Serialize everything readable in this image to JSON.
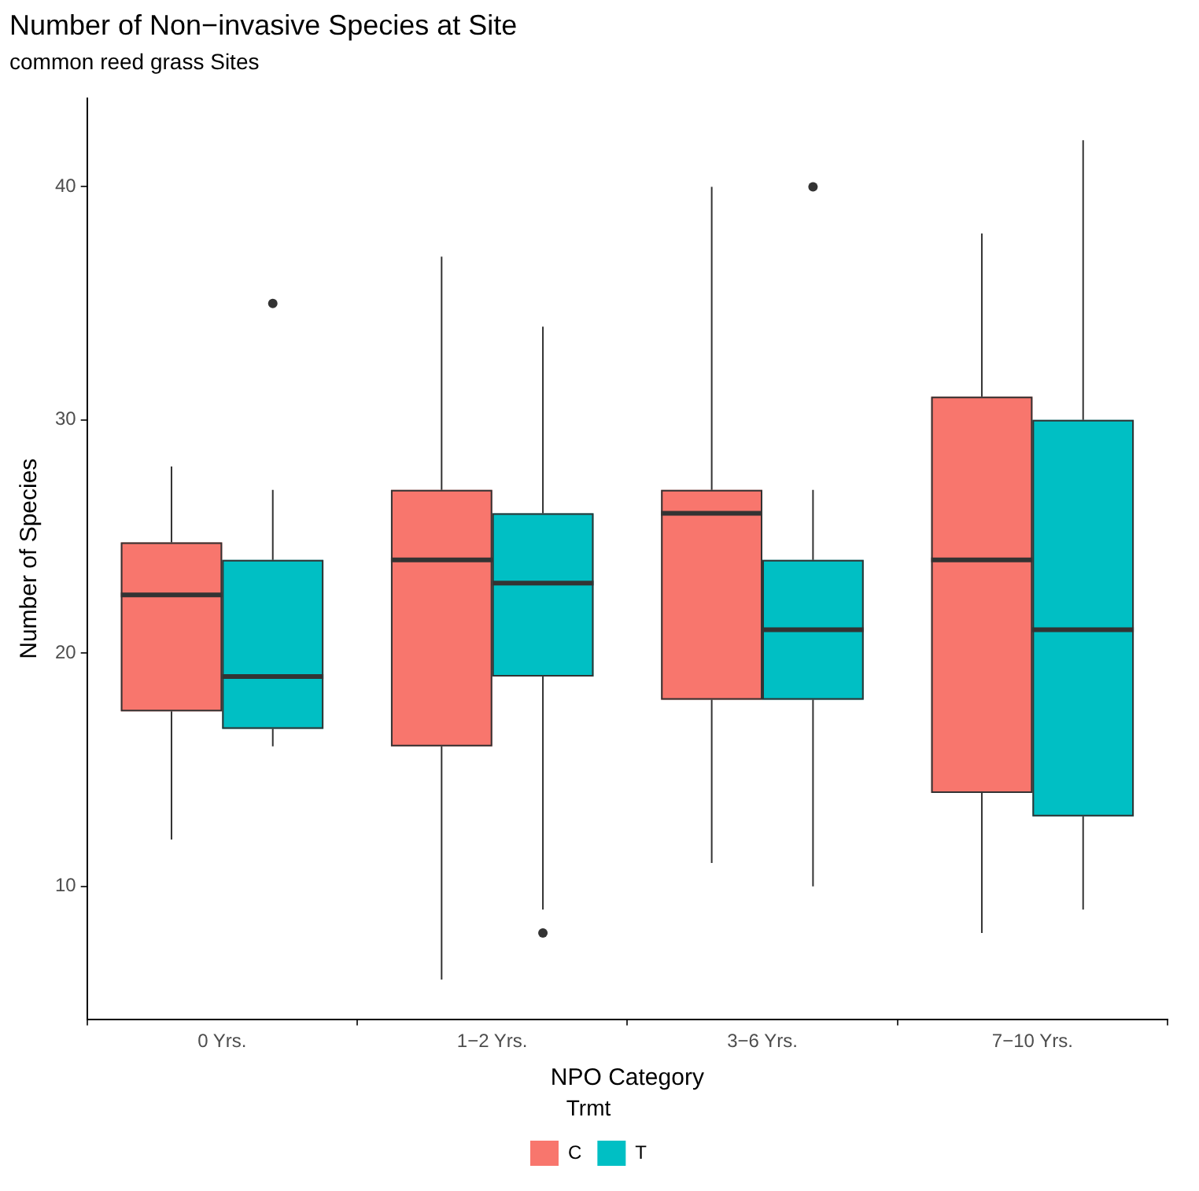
{
  "chart_data": {
    "type": "box",
    "title": "Number of Non−invasive Species at Site",
    "subtitle": "common reed grass Sites",
    "xlabel": "NPO Category",
    "ylabel": "Number of Species",
    "legend_title": "Trmt",
    "legend": "bottom",
    "categories": [
      "0 Yrs.",
      "1−2 Yrs.",
      "3−6 Yrs.",
      "7−10 Yrs."
    ],
    "ylim": [
      4.3,
      43.8
    ],
    "yticks": [
      10,
      20,
      30,
      40
    ],
    "series": [
      {
        "name": "C",
        "color": "#f8766d",
        "boxes": [
          {
            "low": 12,
            "q1": 17.5,
            "median": 22.5,
            "q3": 24.75,
            "high": 28
          },
          {
            "low": 6,
            "q1": 16,
            "median": 24,
            "q3": 27,
            "high": 37
          },
          {
            "low": 11,
            "q1": 18,
            "median": 26,
            "q3": 27,
            "high": 40
          },
          {
            "low": 8,
            "q1": 14,
            "median": 24,
            "q3": 31,
            "high": 38
          }
        ]
      },
      {
        "name": "T",
        "color": "#00bfc4",
        "boxes": [
          {
            "low": 16,
            "q1": 16.75,
            "median": 19,
            "q3": 24,
            "high": 27,
            "outliers": [
              35
            ]
          },
          {
            "low": 9,
            "q1": 19,
            "median": 23,
            "q3": 26,
            "high": 34,
            "outliers": [
              8
            ]
          },
          {
            "low": 10,
            "q1": 18,
            "median": 21,
            "q3": 24,
            "high": 27,
            "outliers": [
              40
            ]
          },
          {
            "low": 9,
            "q1": 13,
            "median": 21,
            "q3": 30,
            "high": 42
          }
        ]
      }
    ]
  }
}
